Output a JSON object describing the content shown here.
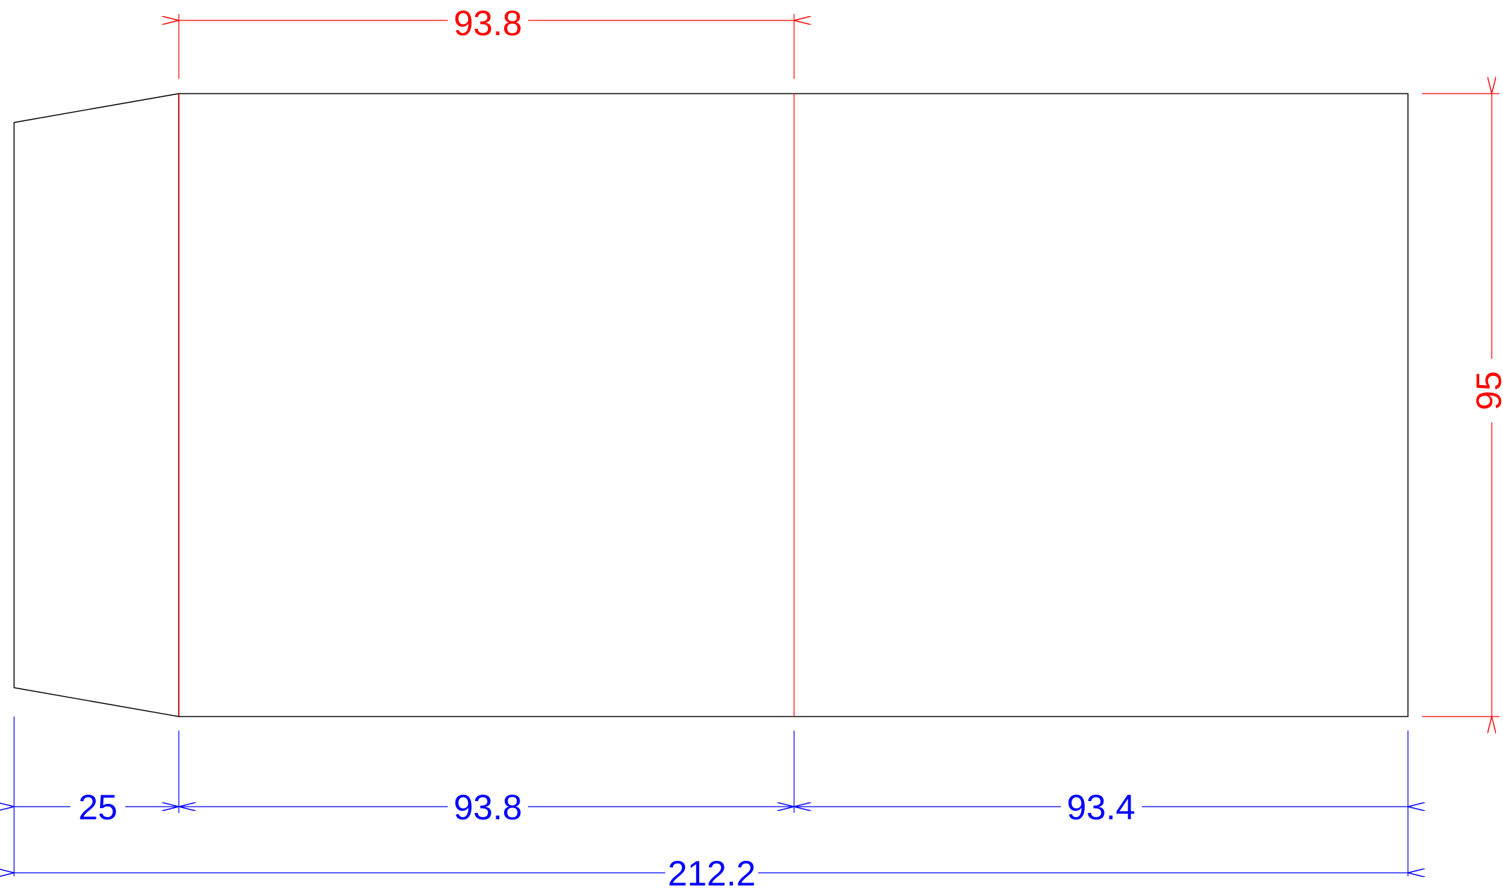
{
  "colors": {
    "outline": "#000000",
    "dimension_blue": "#0000ff",
    "dimension_red": "#ff0000",
    "background": "#ffffff"
  },
  "dimensions": {
    "top_panel_width": "93.8",
    "height": "95",
    "flap_width": "25",
    "middle_panel_width": "93.8",
    "right_panel_width": "93.4",
    "overall_width": "212.2"
  }
}
